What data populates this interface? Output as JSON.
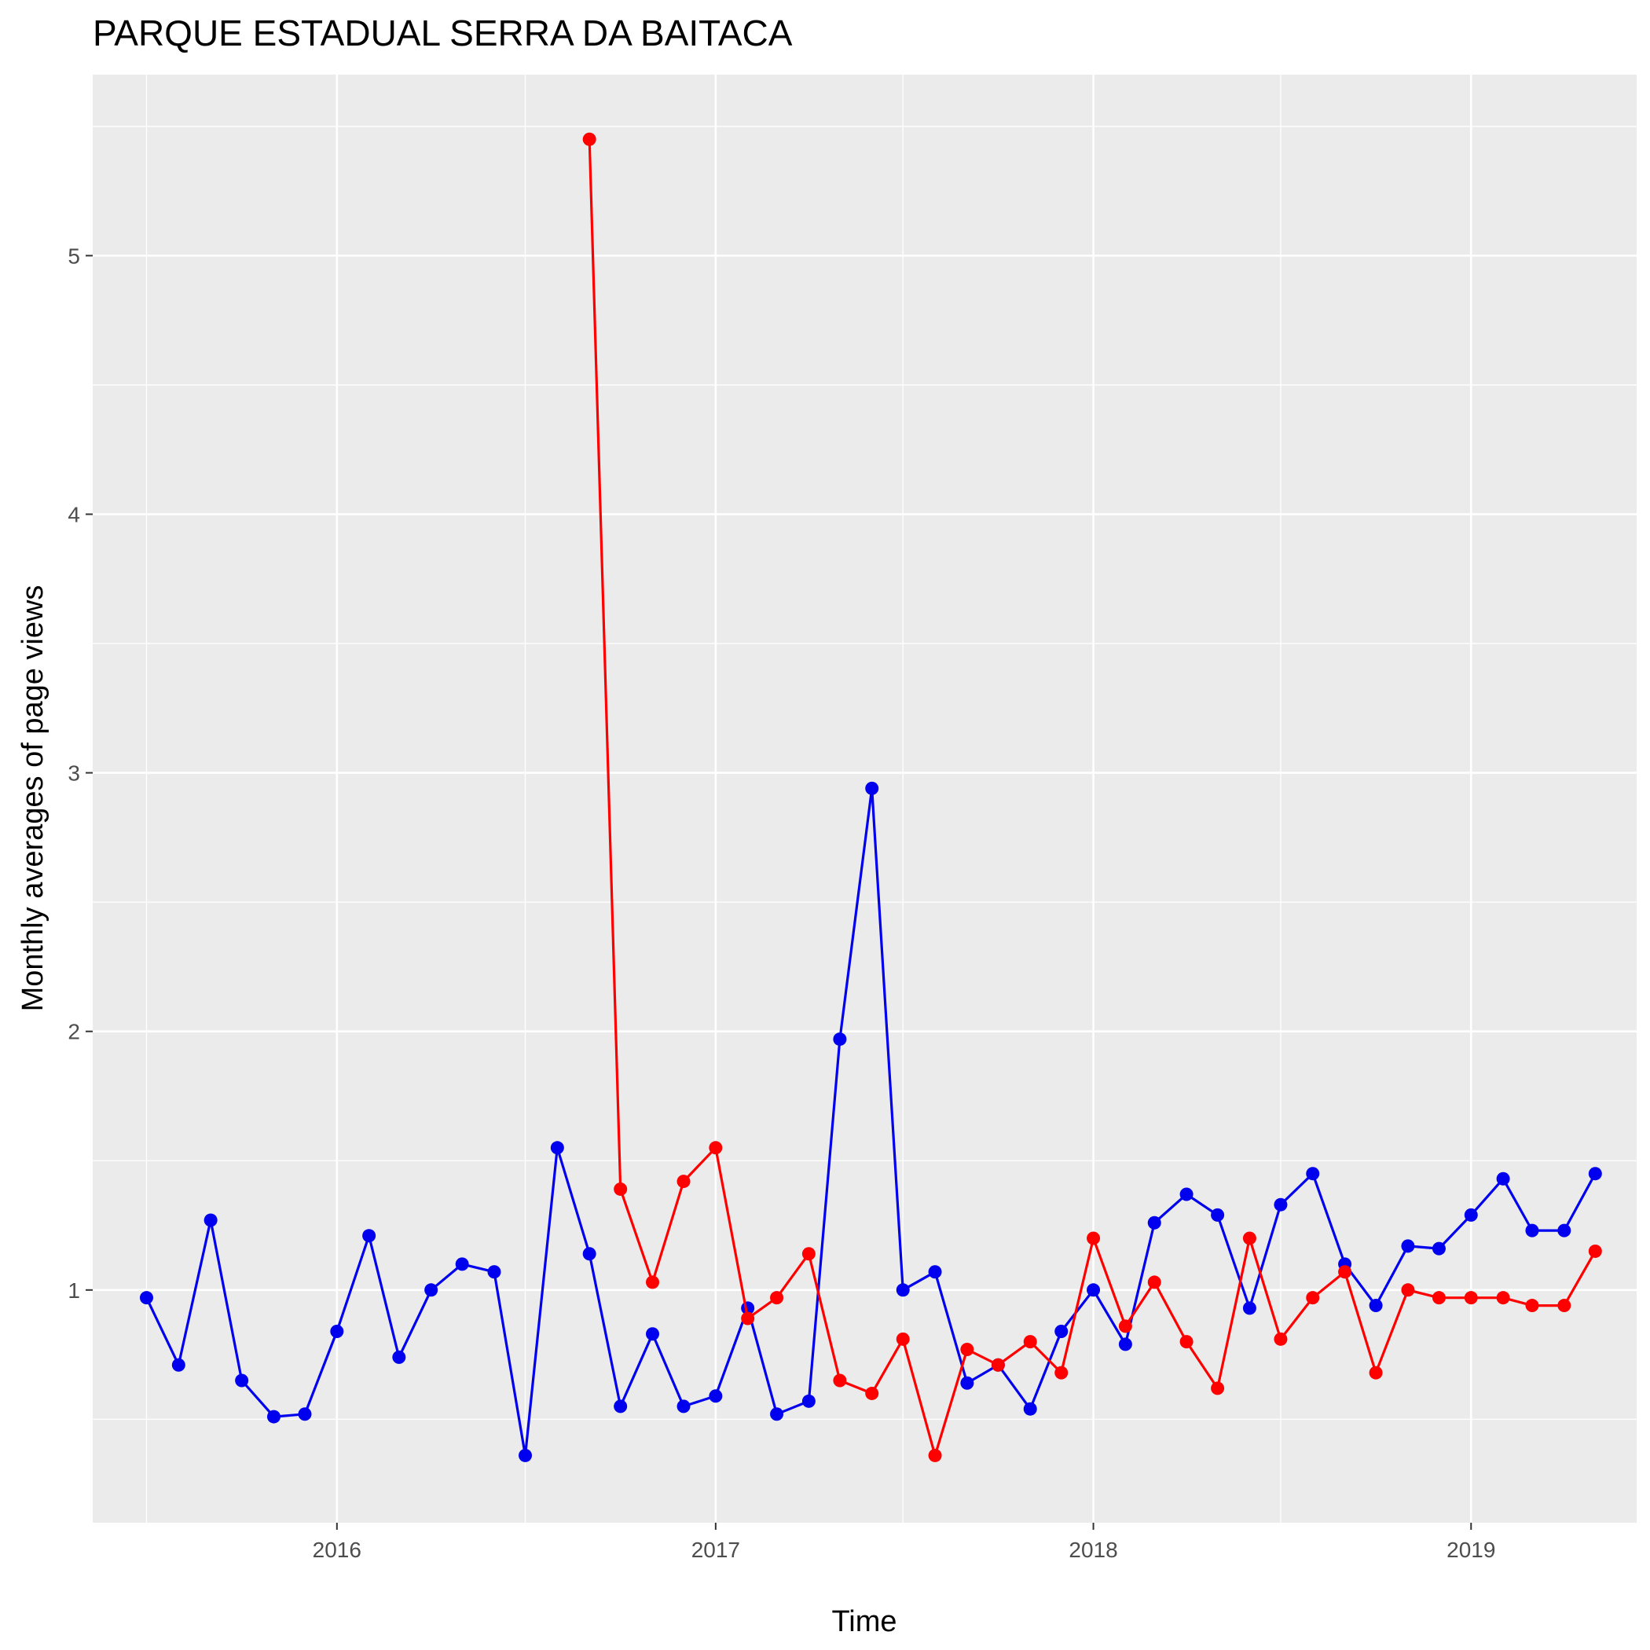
{
  "chart_data": {
    "type": "line",
    "title": "PARQUE ESTADUAL SERRA DA BAITACA",
    "xlabel": "Time",
    "ylabel": "Monthly averages of page views",
    "x_ticks": [
      "2016",
      "2017",
      "2018",
      "2019"
    ],
    "y_ticks": [
      "1",
      "2",
      "3",
      "4",
      "5"
    ],
    "xlim": [
      "2015-05-10",
      "2019-06-10"
    ],
    "ylim": [
      0.1,
      5.7
    ],
    "grid": true,
    "legend": "none",
    "colors": {
      "panel": "#ebebeb",
      "grid": "#ffffff",
      "red_series": "#ff0000",
      "blue_series": "#0000ee"
    },
    "series": [
      {
        "color": "#0000ee",
        "points": [
          [
            "2015-07-01",
            0.97
          ],
          [
            "2015-08-01",
            0.71
          ],
          [
            "2015-09-01",
            1.27
          ],
          [
            "2015-10-01",
            0.65
          ],
          [
            "2015-11-01",
            0.51
          ],
          [
            "2015-12-01",
            0.52
          ],
          [
            "2016-01-01",
            0.84
          ],
          [
            "2016-02-01",
            1.21
          ],
          [
            "2016-03-01",
            0.74
          ],
          [
            "2016-04-01",
            1.0
          ],
          [
            "2016-05-01",
            1.1
          ],
          [
            "2016-06-01",
            1.07
          ],
          [
            "2016-07-01",
            0.36
          ],
          [
            "2016-08-01",
            1.55
          ],
          [
            "2016-09-01",
            1.14
          ],
          [
            "2016-10-01",
            0.55
          ],
          [
            "2016-11-01",
            0.83
          ],
          [
            "2016-12-01",
            0.55
          ],
          [
            "2017-01-01",
            0.59
          ],
          [
            "2017-02-01",
            0.93
          ],
          [
            "2017-03-01",
            0.52
          ],
          [
            "2017-04-01",
            0.57
          ],
          [
            "2017-05-01",
            1.97
          ],
          [
            "2017-06-01",
            2.94
          ],
          [
            "2017-07-01",
            1.0
          ],
          [
            "2017-08-01",
            1.07
          ],
          [
            "2017-09-01",
            0.64
          ],
          [
            "2017-10-01",
            0.71
          ],
          [
            "2017-11-01",
            0.54
          ],
          [
            "2017-12-01",
            0.84
          ],
          [
            "2018-01-01",
            1.0
          ],
          [
            "2018-02-01",
            0.79
          ],
          [
            "2018-03-01",
            1.26
          ],
          [
            "2018-04-01",
            1.37
          ],
          [
            "2018-05-01",
            1.29
          ],
          [
            "2018-06-01",
            0.93
          ],
          [
            "2018-07-01",
            1.33
          ],
          [
            "2018-08-01",
            1.45
          ],
          [
            "2018-09-01",
            1.1
          ],
          [
            "2018-10-01",
            0.94
          ],
          [
            "2018-11-01",
            1.17
          ],
          [
            "2018-12-01",
            1.16
          ],
          [
            "2019-01-01",
            1.29
          ],
          [
            "2019-02-01",
            1.43
          ],
          [
            "2019-03-01",
            1.23
          ],
          [
            "2019-04-01",
            1.23
          ],
          [
            "2019-05-01",
            1.45
          ]
        ]
      },
      {
        "color": "#ff0000",
        "points": [
          [
            "2016-09-01",
            5.45
          ],
          [
            "2016-10-01",
            1.39
          ],
          [
            "2016-11-01",
            1.03
          ],
          [
            "2016-12-01",
            1.42
          ],
          [
            "2017-01-01",
            1.55
          ],
          [
            "2017-02-01",
            0.89
          ],
          [
            "2017-03-01",
            0.97
          ],
          [
            "2017-04-01",
            1.14
          ],
          [
            "2017-05-01",
            0.65
          ],
          [
            "2017-06-01",
            0.6
          ],
          [
            "2017-07-01",
            0.81
          ],
          [
            "2017-08-01",
            0.36
          ],
          [
            "2017-09-01",
            0.77
          ],
          [
            "2017-10-01",
            0.71
          ],
          [
            "2017-11-01",
            0.8
          ],
          [
            "2017-12-01",
            0.68
          ],
          [
            "2018-01-01",
            1.2
          ],
          [
            "2018-02-01",
            0.86
          ],
          [
            "2018-03-01",
            1.03
          ],
          [
            "2018-04-01",
            0.8
          ],
          [
            "2018-05-01",
            0.62
          ],
          [
            "2018-06-01",
            1.2
          ],
          [
            "2018-07-01",
            0.81
          ],
          [
            "2018-08-01",
            0.97
          ],
          [
            "2018-09-01",
            1.07
          ],
          [
            "2018-10-01",
            0.68
          ],
          [
            "2018-11-01",
            1.0
          ],
          [
            "2018-12-01",
            0.97
          ],
          [
            "2019-01-01",
            0.97
          ],
          [
            "2019-02-01",
            0.97
          ],
          [
            "2019-03-01",
            0.94
          ],
          [
            "2019-04-01",
            0.94
          ],
          [
            "2019-05-01",
            1.15
          ]
        ]
      }
    ]
  }
}
